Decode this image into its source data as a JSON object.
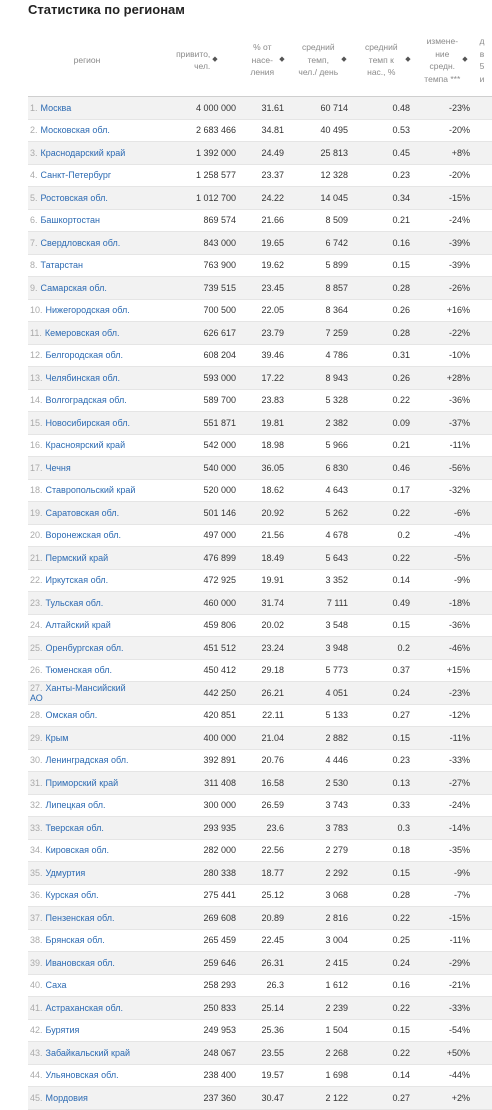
{
  "page_title": "Статистика по регионам",
  "columns": [
    {
      "key": "region",
      "label": "регион"
    },
    {
      "key": "vaccinated",
      "label": "привито, чел."
    },
    {
      "key": "percent",
      "label": "% от насе- ления"
    },
    {
      "key": "avg_speed",
      "label": "средний темп, чел./ день"
    },
    {
      "key": "rel_speed",
      "label": "средний темп к нас., %"
    },
    {
      "key": "change",
      "label": "измене- ние средн. темпа ***"
    },
    {
      "key": "extra",
      "label": "д в 5 и"
    }
  ],
  "rows": [
    {
      "n": "1.",
      "region": "Москва",
      "vaccinated": "4 000 000",
      "percent": "31.61",
      "avg_speed": "60 714",
      "rel_speed": "0.48",
      "change": "-23%"
    },
    {
      "n": "2.",
      "region": "Московская обл.",
      "vaccinated": "2 683 466",
      "percent": "34.81",
      "avg_speed": "40 495",
      "rel_speed": "0.53",
      "change": "-20%"
    },
    {
      "n": "3.",
      "region": "Краснодарский край",
      "vaccinated": "1 392 000",
      "percent": "24.49",
      "avg_speed": "25 813",
      "rel_speed": "0.45",
      "change": "+8%"
    },
    {
      "n": "4.",
      "region": "Санкт-Петербург",
      "vaccinated": "1 258 577",
      "percent": "23.37",
      "avg_speed": "12 328",
      "rel_speed": "0.23",
      "change": "-20%"
    },
    {
      "n": "5.",
      "region": "Ростовская обл.",
      "vaccinated": "1 012 700",
      "percent": "24.22",
      "avg_speed": "14 045",
      "rel_speed": "0.34",
      "change": "-15%"
    },
    {
      "n": "6.",
      "region": "Башкортостан",
      "vaccinated": "869 574",
      "percent": "21.66",
      "avg_speed": "8 509",
      "rel_speed": "0.21",
      "change": "-24%"
    },
    {
      "n": "7.",
      "region": "Свердловская обл.",
      "vaccinated": "843 000",
      "percent": "19.65",
      "avg_speed": "6 742",
      "rel_speed": "0.16",
      "change": "-39%"
    },
    {
      "n": "8.",
      "region": "Татарстан",
      "vaccinated": "763 900",
      "percent": "19.62",
      "avg_speed": "5 899",
      "rel_speed": "0.15",
      "change": "-39%"
    },
    {
      "n": "9.",
      "region": "Самарская обл.",
      "vaccinated": "739 515",
      "percent": "23.45",
      "avg_speed": "8 857",
      "rel_speed": "0.28",
      "change": "-26%"
    },
    {
      "n": "10.",
      "region": "Нижегородская обл.",
      "vaccinated": "700 500",
      "percent": "22.05",
      "avg_speed": "8 364",
      "rel_speed": "0.26",
      "change": "+16%"
    },
    {
      "n": "11.",
      "region": "Кемеровская обл.",
      "vaccinated": "626 617",
      "percent": "23.79",
      "avg_speed": "7 259",
      "rel_speed": "0.28",
      "change": "-22%"
    },
    {
      "n": "12.",
      "region": "Белгородская обл.",
      "vaccinated": "608 204",
      "percent": "39.46",
      "avg_speed": "4 786",
      "rel_speed": "0.31",
      "change": "-10%"
    },
    {
      "n": "13.",
      "region": "Челябинская обл.",
      "vaccinated": "593 000",
      "percent": "17.22",
      "avg_speed": "8 943",
      "rel_speed": "0.26",
      "change": "+28%"
    },
    {
      "n": "14.",
      "region": "Волгоградская обл.",
      "vaccinated": "589 700",
      "percent": "23.83",
      "avg_speed": "5 328",
      "rel_speed": "0.22",
      "change": "-36%"
    },
    {
      "n": "15.",
      "region": "Новосибирская обл.",
      "vaccinated": "551 871",
      "percent": "19.81",
      "avg_speed": "2 382",
      "rel_speed": "0.09",
      "change": "-37%"
    },
    {
      "n": "16.",
      "region": "Красноярский край",
      "vaccinated": "542 000",
      "percent": "18.98",
      "avg_speed": "5 966",
      "rel_speed": "0.21",
      "change": "-11%"
    },
    {
      "n": "17.",
      "region": "Чечня",
      "vaccinated": "540 000",
      "percent": "36.05",
      "avg_speed": "6 830",
      "rel_speed": "0.46",
      "change": "-56%"
    },
    {
      "n": "18.",
      "region": "Ставропольский край",
      "vaccinated": "520 000",
      "percent": "18.62",
      "avg_speed": "4 643",
      "rel_speed": "0.17",
      "change": "-32%"
    },
    {
      "n": "19.",
      "region": "Саратовская обл.",
      "vaccinated": "501 146",
      "percent": "20.92",
      "avg_speed": "5 262",
      "rel_speed": "0.22",
      "change": "-6%"
    },
    {
      "n": "20.",
      "region": "Воронежская обл.",
      "vaccinated": "497 000",
      "percent": "21.56",
      "avg_speed": "4 678",
      "rel_speed": "0.2",
      "change": "-4%"
    },
    {
      "n": "21.",
      "region": "Пермский край",
      "vaccinated": "476 899",
      "percent": "18.49",
      "avg_speed": "5 643",
      "rel_speed": "0.22",
      "change": "-5%"
    },
    {
      "n": "22.",
      "region": "Иркутская обл.",
      "vaccinated": "472 925",
      "percent": "19.91",
      "avg_speed": "3 352",
      "rel_speed": "0.14",
      "change": "-9%"
    },
    {
      "n": "23.",
      "region": "Тульская обл.",
      "vaccinated": "460 000",
      "percent": "31.74",
      "avg_speed": "7 111",
      "rel_speed": "0.49",
      "change": "-18%"
    },
    {
      "n": "24.",
      "region": "Алтайский край",
      "vaccinated": "459 806",
      "percent": "20.02",
      "avg_speed": "3 548",
      "rel_speed": "0.15",
      "change": "-36%"
    },
    {
      "n": "25.",
      "region": "Оренбургская обл.",
      "vaccinated": "451 512",
      "percent": "23.24",
      "avg_speed": "3 948",
      "rel_speed": "0.2",
      "change": "-46%"
    },
    {
      "n": "26.",
      "region": "Тюменская обл.",
      "vaccinated": "450 412",
      "percent": "29.18",
      "avg_speed": "5 773",
      "rel_speed": "0.37",
      "change": "+15%"
    },
    {
      "n": "27.",
      "region": "Ханты-Мансийский АО",
      "vaccinated": "442 250",
      "percent": "26.21",
      "avg_speed": "4 051",
      "rel_speed": "0.24",
      "change": "-23%"
    },
    {
      "n": "28.",
      "region": "Омская обл.",
      "vaccinated": "420 851",
      "percent": "22.11",
      "avg_speed": "5 133",
      "rel_speed": "0.27",
      "change": "-12%"
    },
    {
      "n": "29.",
      "region": "Крым",
      "vaccinated": "400 000",
      "percent": "21.04",
      "avg_speed": "2 882",
      "rel_speed": "0.15",
      "change": "-11%"
    },
    {
      "n": "30.",
      "region": "Ленинградская обл.",
      "vaccinated": "392 891",
      "percent": "20.76",
      "avg_speed": "4 446",
      "rel_speed": "0.23",
      "change": "-33%"
    },
    {
      "n": "31.",
      "region": "Приморский край",
      "vaccinated": "311 408",
      "percent": "16.58",
      "avg_speed": "2 530",
      "rel_speed": "0.13",
      "change": "-27%"
    },
    {
      "n": "32.",
      "region": "Липецкая обл.",
      "vaccinated": "300 000",
      "percent": "26.59",
      "avg_speed": "3 743",
      "rel_speed": "0.33",
      "change": "-24%"
    },
    {
      "n": "33.",
      "region": "Тверская обл.",
      "vaccinated": "293 935",
      "percent": "23.6",
      "avg_speed": "3 783",
      "rel_speed": "0.3",
      "change": "-14%"
    },
    {
      "n": "34.",
      "region": "Кировская обл.",
      "vaccinated": "282 000",
      "percent": "22.56",
      "avg_speed": "2 279",
      "rel_speed": "0.18",
      "change": "-35%"
    },
    {
      "n": "35.",
      "region": "Удмуртия",
      "vaccinated": "280 338",
      "percent": "18.77",
      "avg_speed": "2 292",
      "rel_speed": "0.15",
      "change": "-9%"
    },
    {
      "n": "36.",
      "region": "Курская обл.",
      "vaccinated": "275 441",
      "percent": "25.12",
      "avg_speed": "3 068",
      "rel_speed": "0.28",
      "change": "-7%"
    },
    {
      "n": "37.",
      "region": "Пензенская обл.",
      "vaccinated": "269 608",
      "percent": "20.89",
      "avg_speed": "2 816",
      "rel_speed": "0.22",
      "change": "-15%"
    },
    {
      "n": "38.",
      "region": "Брянская обл.",
      "vaccinated": "265 459",
      "percent": "22.45",
      "avg_speed": "3 004",
      "rel_speed": "0.25",
      "change": "-11%"
    },
    {
      "n": "39.",
      "region": "Ивановская обл.",
      "vaccinated": "259 646",
      "percent": "26.31",
      "avg_speed": "2 415",
      "rel_speed": "0.24",
      "change": "-29%"
    },
    {
      "n": "40.",
      "region": "Саха",
      "vaccinated": "258 293",
      "percent": "26.3",
      "avg_speed": "1 612",
      "rel_speed": "0.16",
      "change": "-21%"
    },
    {
      "n": "41.",
      "region": "Астраханская обл.",
      "vaccinated": "250 833",
      "percent": "25.14",
      "avg_speed": "2 239",
      "rel_speed": "0.22",
      "change": "-33%"
    },
    {
      "n": "42.",
      "region": "Бурятия",
      "vaccinated": "249 953",
      "percent": "25.36",
      "avg_speed": "1 504",
      "rel_speed": "0.15",
      "change": "-54%"
    },
    {
      "n": "43.",
      "region": "Забайкальский край",
      "vaccinated": "248 067",
      "percent": "23.55",
      "avg_speed": "2 268",
      "rel_speed": "0.22",
      "change": "+50%"
    },
    {
      "n": "44.",
      "region": "Ульяновская обл.",
      "vaccinated": "238 400",
      "percent": "19.57",
      "avg_speed": "1 698",
      "rel_speed": "0.14",
      "change": "-44%"
    },
    {
      "n": "45.",
      "region": "Мордовия",
      "vaccinated": "237 360",
      "percent": "30.47",
      "avg_speed": "2 122",
      "rel_speed": "0.27",
      "change": "+2%"
    }
  ]
}
